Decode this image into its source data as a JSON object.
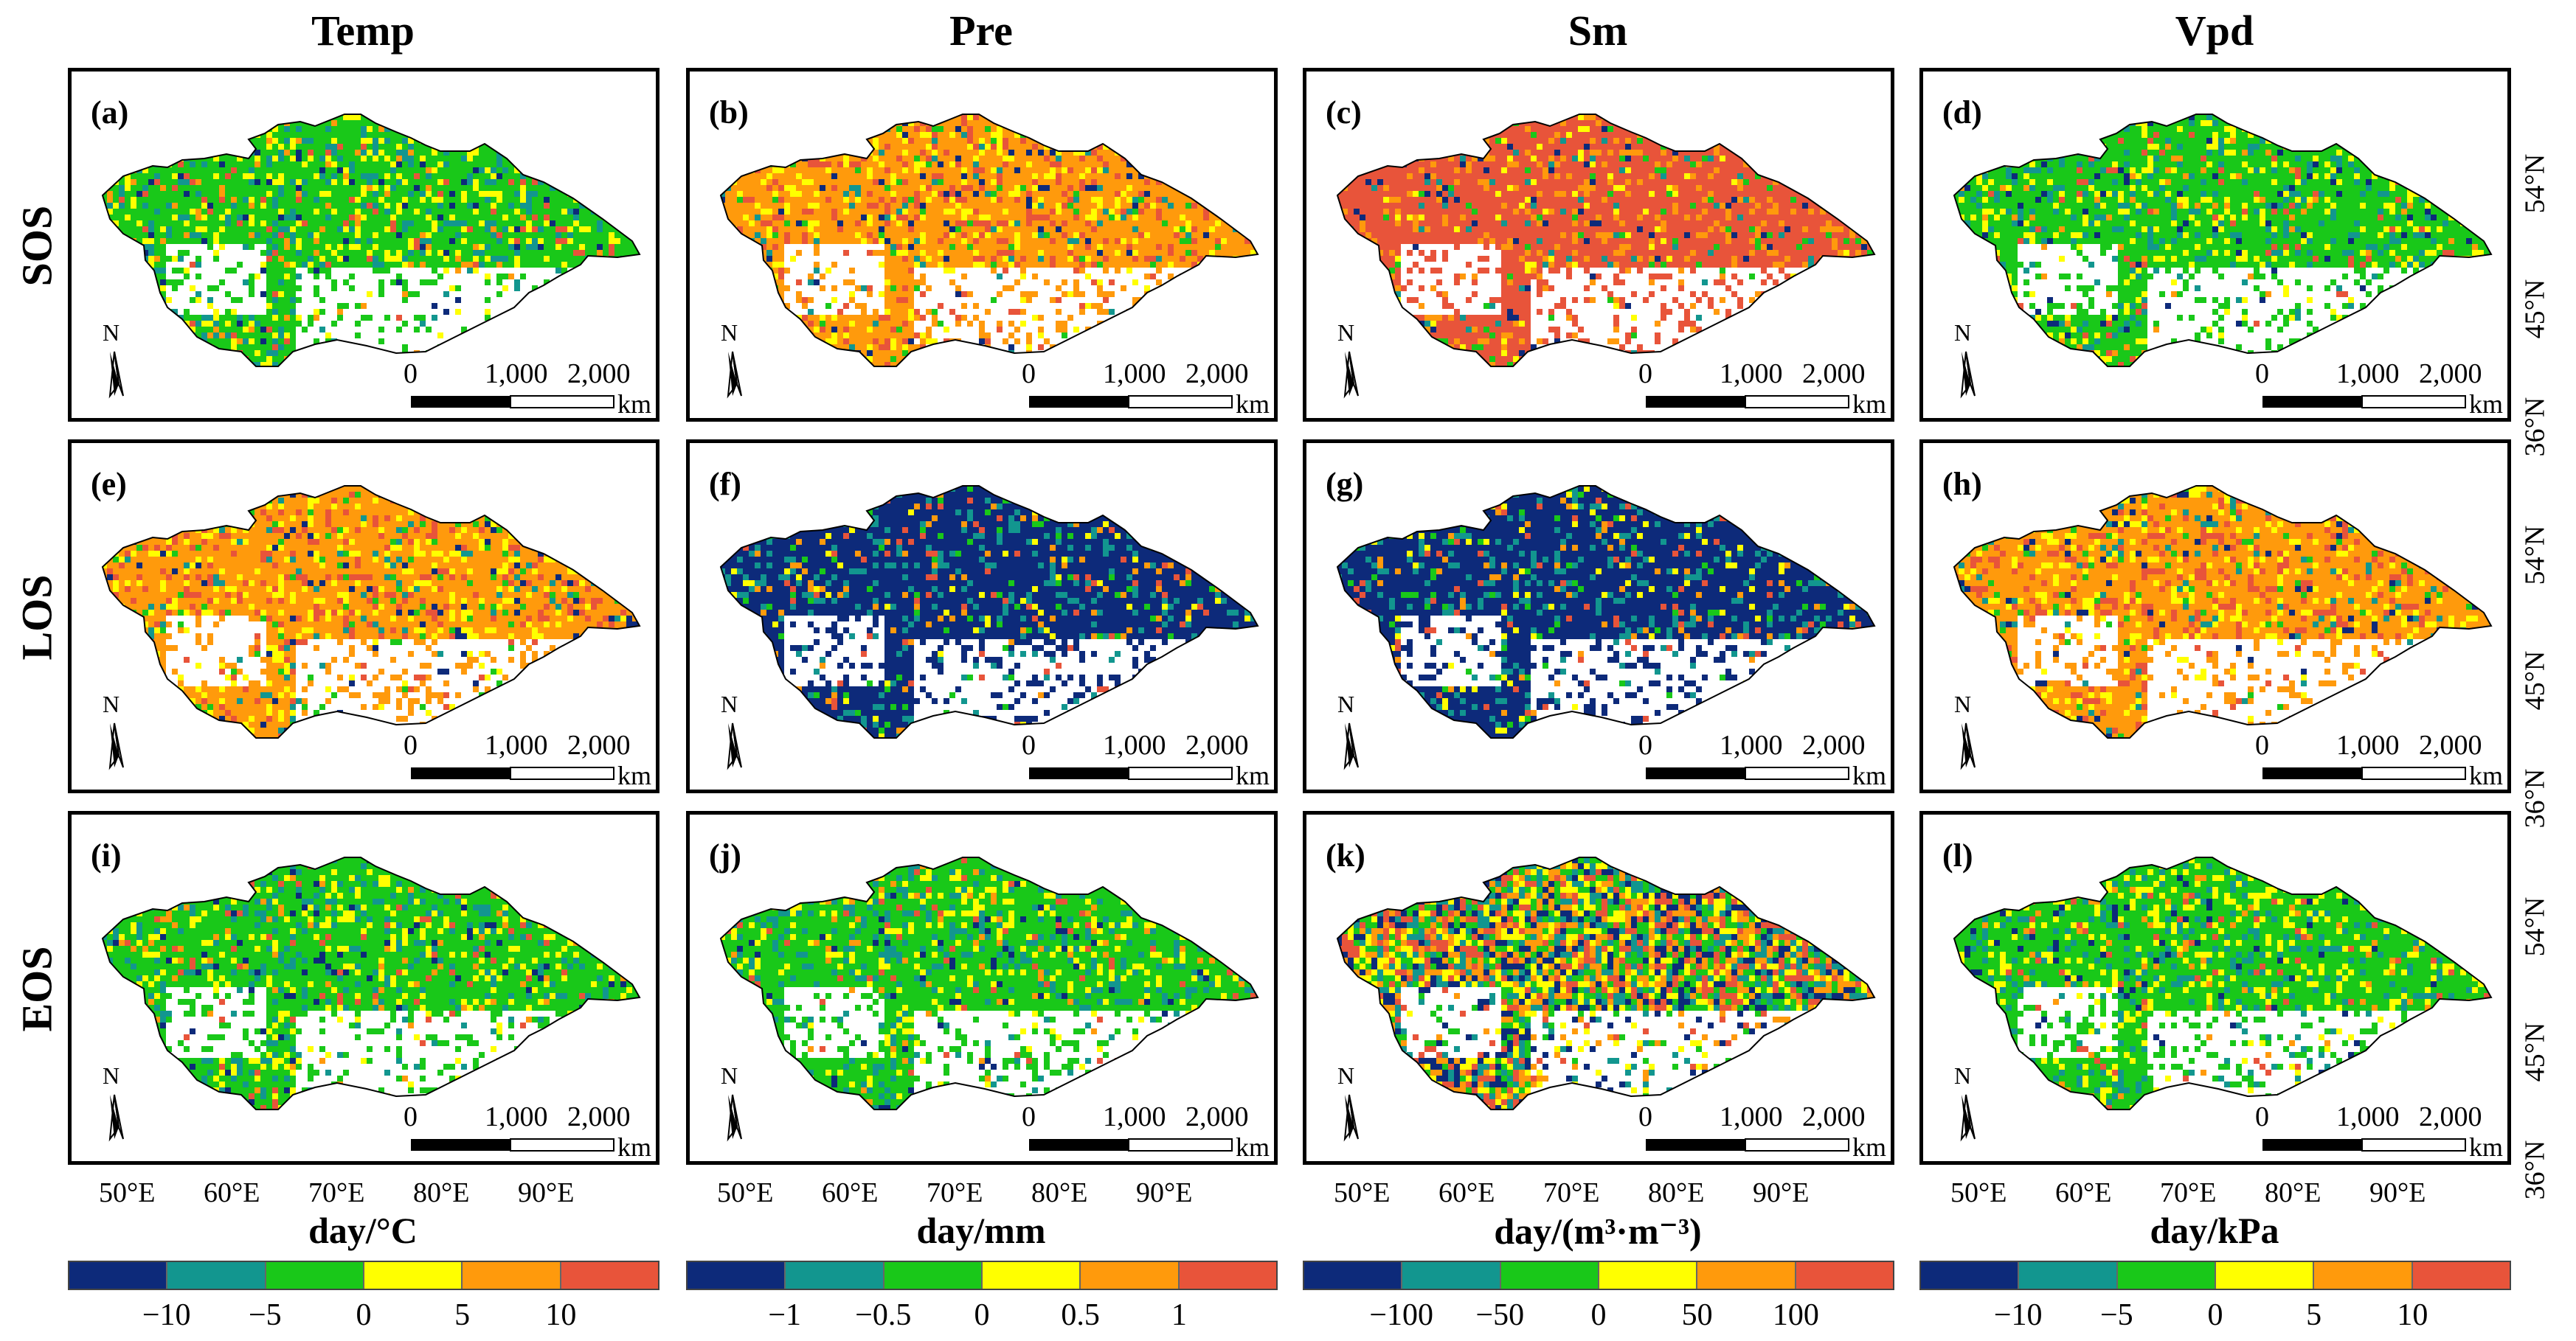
{
  "columns": [
    {
      "title": "Temp",
      "unit": "day/°C",
      "ticks": [
        "−10",
        "−5",
        "0",
        "5",
        "10"
      ]
    },
    {
      "title": "Pre",
      "unit": "day/mm",
      "ticks": [
        "−1",
        "−0.5",
        "0",
        "0.5",
        "1"
      ]
    },
    {
      "title": "Sm",
      "unit": "day/(m³·m⁻³)",
      "ticks": [
        "−100",
        "−50",
        "0",
        "50",
        "100"
      ]
    },
    {
      "title": "Vpd",
      "unit": "day/kPa",
      "ticks": [
        "−10",
        "−5",
        "0",
        "5",
        "10"
      ]
    }
  ],
  "rows": [
    {
      "title": "SOS"
    },
    {
      "title": "LOS"
    },
    {
      "title": "EOS"
    }
  ],
  "panel_labels": [
    "(a)",
    "(b)",
    "(c)",
    "(d)",
    "(e)",
    "(f)",
    "(g)",
    "(h)",
    "(i)",
    "(j)",
    "(k)",
    "(l)"
  ],
  "panel_dominant": [
    [
      "green",
      "orange",
      "red",
      "green"
    ],
    [
      "orange",
      "navy",
      "navy",
      "orange"
    ],
    [
      "green",
      "green",
      "mixed",
      "green"
    ]
  ],
  "scale_bar": {
    "ticks": [
      "0",
      "1,000",
      "2,000"
    ],
    "unit": "km"
  },
  "north_arrow": {
    "letter": "N",
    "icon": "north-arrow-icon"
  },
  "lat_labels": [
    "54°N",
    "45°N",
    "36°N"
  ],
  "lon_labels": [
    "50°E",
    "60°E",
    "70°E",
    "80°E",
    "90°E"
  ],
  "colorbar_colors": [
    "#0d2a7a",
    "#12968f",
    "#19c819",
    "#ffff00",
    "#ff9a0c",
    "#e8543a"
  ]
}
